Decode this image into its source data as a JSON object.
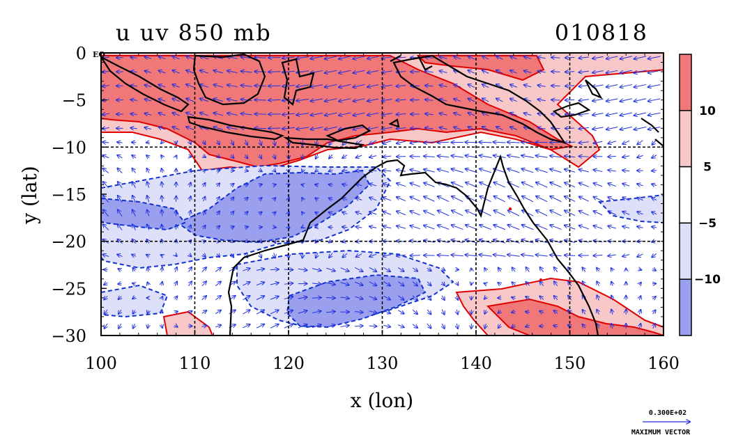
{
  "header": {
    "title_left": "u uv 850 mb",
    "title_right": "010818"
  },
  "axes": {
    "xlabel": "x (lon)",
    "ylabel": "y (lat)",
    "x_ticks": [
      "100",
      "110",
      "120",
      "130",
      "140",
      "150",
      "160"
    ],
    "y_ticks": [
      "0",
      "−5",
      "−10",
      "−15",
      "−20",
      "−25",
      "−30"
    ],
    "equator_label": "EQ",
    "x_range": [
      100,
      160
    ],
    "y_range": [
      -30,
      0
    ]
  },
  "colorbar": {
    "ticks": [
      "10",
      "5",
      "−5",
      "−10"
    ],
    "levels": [
      {
        "color": "#f07878"
      },
      {
        "color": "#f8c8c8"
      },
      {
        "color": "#ffffff"
      },
      {
        "color": "#dde0f8"
      },
      {
        "color": "#9aa0ee"
      }
    ]
  },
  "reference_vector": {
    "value_label": "0.300E+02",
    "caption": "MAXIMUM VECTOR"
  },
  "colors": {
    "positive_strong": "#f07878",
    "positive_weak": "#f8c8c8",
    "negative_weak": "#dde0f8",
    "negative_strong": "#9aa0ee",
    "positive_contour": "#e00000",
    "negative_contour": "#1030d0",
    "vector": "#2030e0",
    "coastline": "#000000"
  }
}
